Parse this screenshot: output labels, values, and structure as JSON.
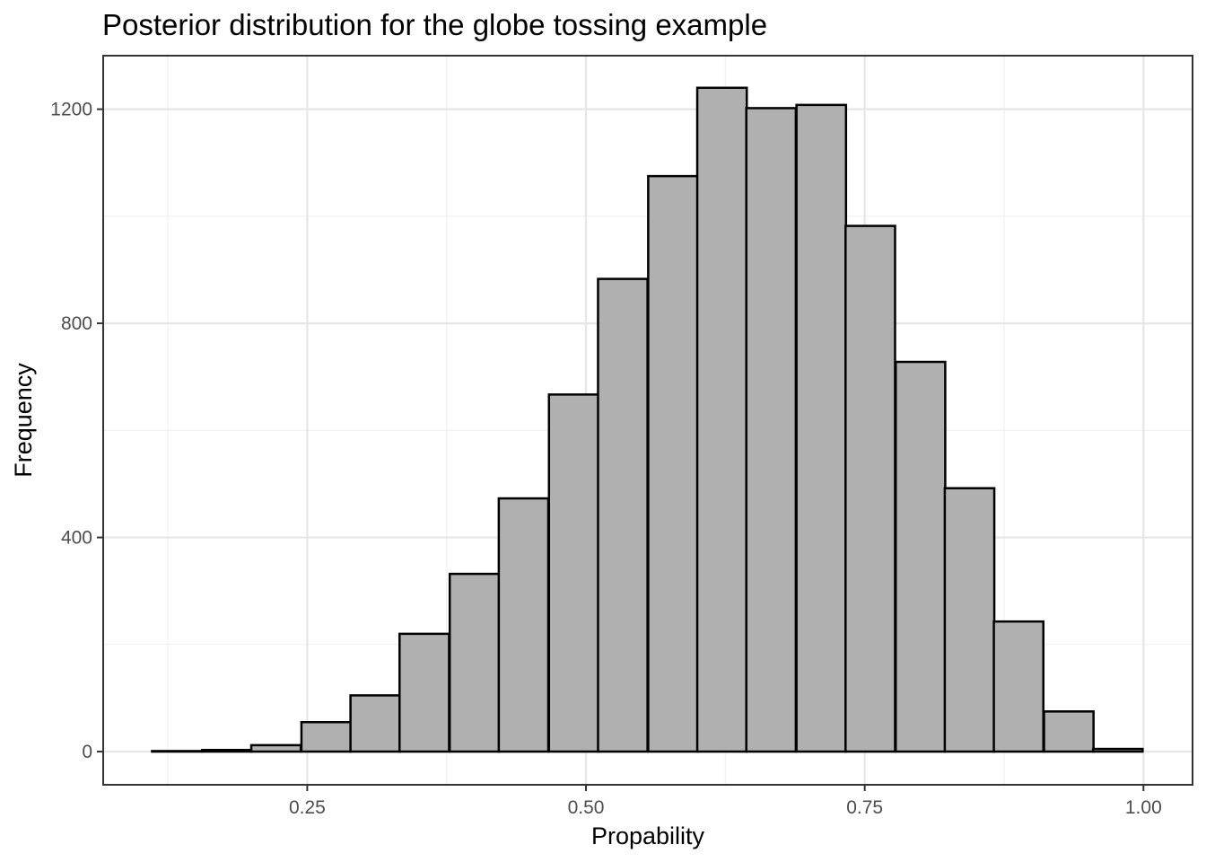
{
  "chart_data": {
    "type": "bar",
    "title": "Posterior distribution for the globe tossing example",
    "xlabel": "Propability",
    "ylabel": "Frequency",
    "xlim": [
      0.067,
      1.044
    ],
    "ylim": [
      -62,
      1300
    ],
    "x_ticks": [
      0.25,
      0.5,
      0.75,
      1.0
    ],
    "x_tick_labels": [
      "0.25",
      "0.50",
      "0.75",
      "1.00"
    ],
    "y_ticks": [
      0,
      400,
      800,
      1200
    ],
    "y_tick_labels": [
      "0",
      "400",
      "800",
      "1200"
    ],
    "grid": true,
    "bin_width": 0.0444,
    "bin_centers": [
      0.133,
      0.178,
      0.222,
      0.267,
      0.311,
      0.355,
      0.4,
      0.444,
      0.489,
      0.533,
      0.578,
      0.622,
      0.666,
      0.711,
      0.755,
      0.8,
      0.844,
      0.888,
      0.933,
      0.977
    ],
    "values": [
      1,
      3,
      12,
      55,
      105,
      220,
      332,
      473,
      667,
      883,
      1075,
      1240,
      1202,
      1208,
      982,
      728,
      492,
      243,
      75,
      5
    ],
    "colors": {
      "bar_fill": "#b0b0b0",
      "bar_stroke": "#000000",
      "grid": "#e6e6e6",
      "panel_border": "#333333"
    }
  }
}
